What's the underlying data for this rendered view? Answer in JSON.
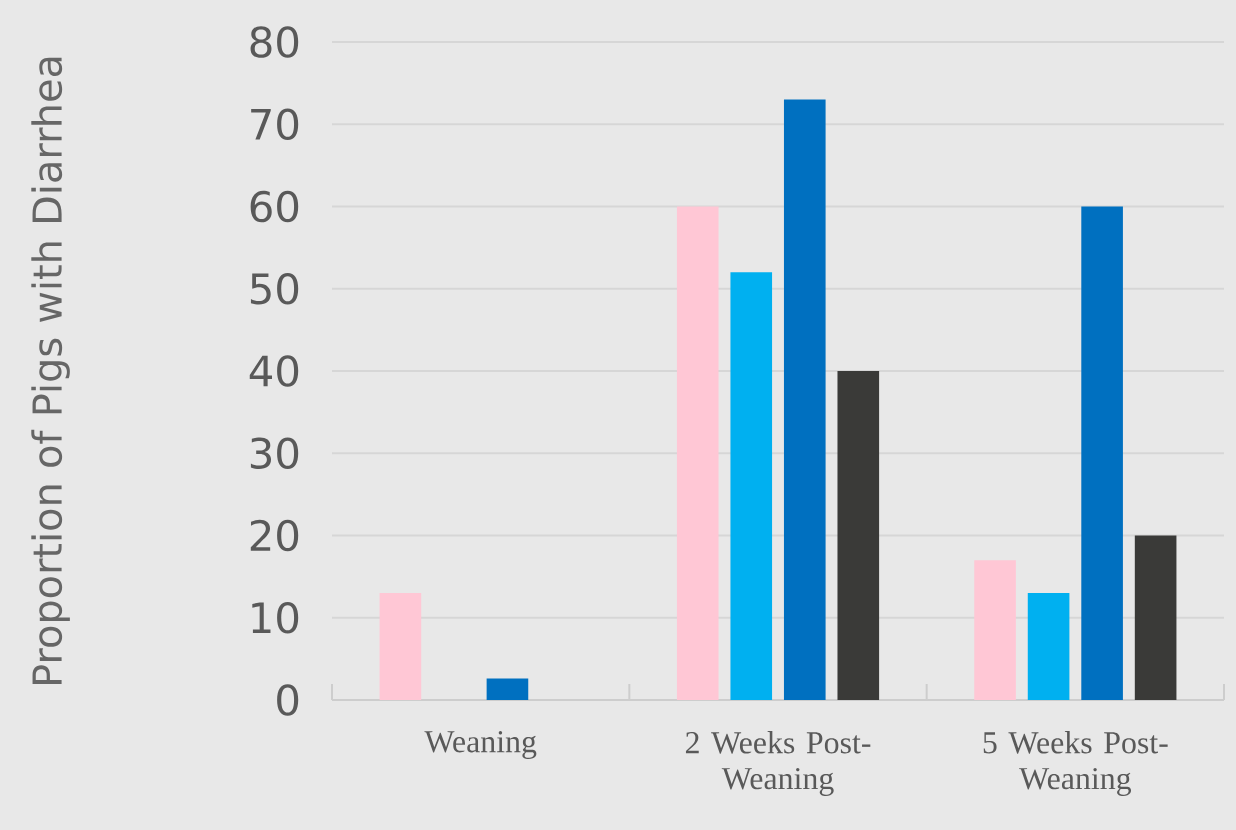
{
  "chart_data": {
    "type": "bar",
    "ylabel": "Proportion of Pigs with Diarrhea",
    "categories": [
      "Weaning",
      "2 Weeks Post-Weaning",
      "5 Weeks Post-Weaning"
    ],
    "series": [
      {
        "color": "#ffc7d5",
        "values": [
          13,
          60,
          17
        ]
      },
      {
        "color": "#00b0f0",
        "values": [
          0,
          52,
          13
        ]
      },
      {
        "color": "#0070c0",
        "values": [
          2.6,
          73,
          60
        ]
      },
      {
        "color": "#3a3a38",
        "values": [
          0,
          40,
          20
        ]
      }
    ],
    "ylim": [
      0,
      80
    ],
    "yticks": [
      0,
      10,
      20,
      30,
      40,
      50,
      60,
      70,
      80
    ],
    "grid": "y"
  }
}
